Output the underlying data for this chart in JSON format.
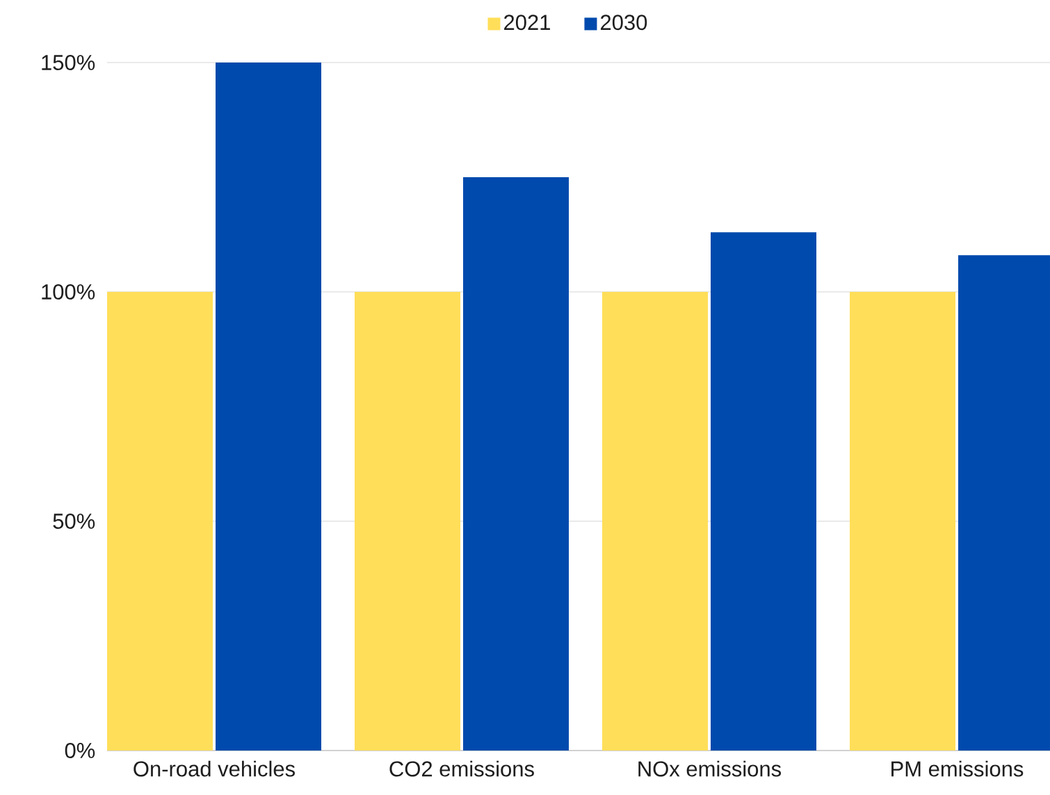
{
  "chart_data": {
    "type": "bar",
    "categories": [
      "On-road vehicles",
      "CO2 emissions",
      "NOx emissions",
      "PM emissions"
    ],
    "series": [
      {
        "name": "2021",
        "color": "#ffde59",
        "values": [
          100,
          100,
          100,
          100
        ]
      },
      {
        "name": "2030",
        "color": "#004aad",
        "values": [
          150,
          125,
          113,
          108
        ]
      }
    ],
    "ylim": [
      0,
      150
    ],
    "yticks": [
      {
        "value": 0,
        "label": "0%"
      },
      {
        "value": 50,
        "label": "50%"
      },
      {
        "value": 100,
        "label": "100%"
      },
      {
        "value": 150,
        "label": "150%"
      }
    ],
    "grid": "y",
    "legend": "top"
  }
}
